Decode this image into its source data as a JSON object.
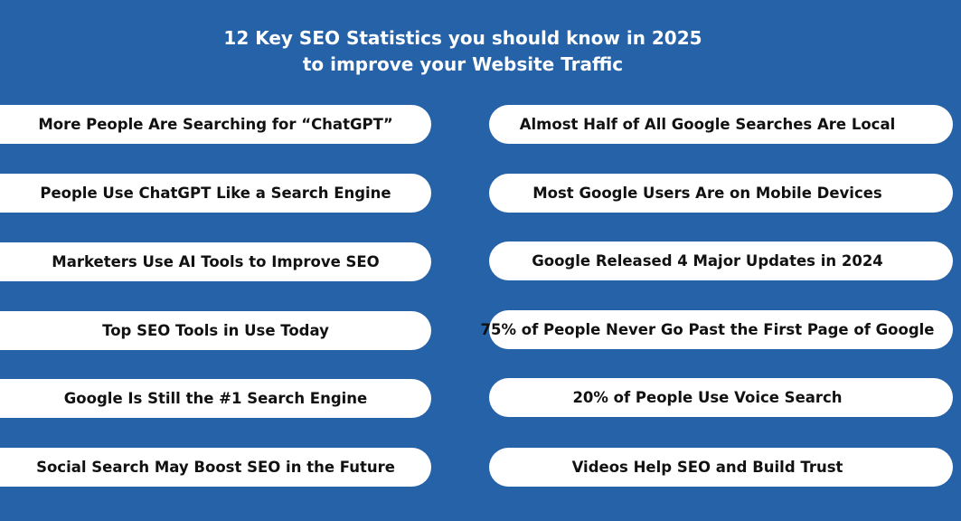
{
  "title": {
    "line1": "12 Key SEO Statistics you should know in 2025",
    "line2": "to improve your Website Traffic"
  },
  "left_items": [
    "More People Are Searching for “ChatGPT”",
    "People Use ChatGPT Like a Search Engine",
    "Marketers Use AI Tools to Improve SEO",
    "Top SEO Tools in Use Today",
    "Google Is Still the #1 Search Engine",
    "Social Search May Boost SEO in the Future"
  ],
  "right_items": [
    "Almost Half of All Google Searches Are Local",
    "Most Google Users Are on Mobile Devices",
    "Google Released 4 Major Updates in 2024",
    "75% of People Never Go Past the First Page of Google",
    "20% of People Use Voice Search",
    "Videos Help SEO and Build Trust"
  ],
  "colors": {
    "background": "#2562a8",
    "pill": "#ffffff",
    "pill_text": "#111111",
    "title_text": "#ffffff"
  }
}
